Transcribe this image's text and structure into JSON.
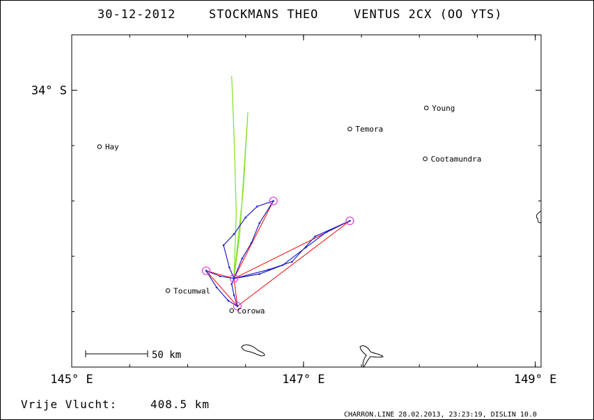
{
  "header": {
    "date": "30-12-2012",
    "pilot": "STOCKMANS THEO",
    "glider": "VENTUS 2CX (OO YTS)"
  },
  "footer": {
    "flight_label": "Vrije Vlucht:",
    "flight_distance": "408.5 km",
    "software": "CHARRON.LINE 28.02.2013, 23:23:19, DISLIN 10.0"
  },
  "chart_data": {
    "type": "map",
    "x_axis": {
      "ticks": [
        145,
        147,
        149
      ],
      "tick_labels": [
        "145° E",
        "147° E",
        "149° E"
      ],
      "range": [
        145.0,
        149.05
      ]
    },
    "y_axis": {
      "ticks": [
        -34
      ],
      "tick_labels": [
        "34° S"
      ],
      "range": [
        -36.5,
        -33.5
      ]
    },
    "scale_bar": {
      "label": "50 km"
    },
    "towns": [
      {
        "name": "Hay",
        "lon": 145.24,
        "lat": -34.51
      },
      {
        "name": "Temora",
        "lon": 147.4,
        "lat": -34.35
      },
      {
        "name": "Young",
        "lon": 148.06,
        "lat": -34.16
      },
      {
        "name": "Cootamundra",
        "lon": 148.05,
        "lat": -34.62
      },
      {
        "name": "Tocumwal",
        "lon": 145.83,
        "lat": -35.81
      },
      {
        "name": "Corowa",
        "lon": 146.38,
        "lat": -35.99
      }
    ],
    "turnpoints": [
      {
        "lon": 146.74,
        "lat": -35.0
      },
      {
        "lon": 147.4,
        "lat": -35.18
      },
      {
        "lon": 146.16,
        "lat": -35.63
      },
      {
        "lon": 146.4,
        "lat": -35.7
      },
      {
        "lon": 146.43,
        "lat": -35.95
      }
    ],
    "task_lines": [
      [
        [
          146.43,
          -35.95
        ],
        [
          146.4,
          -35.7
        ],
        [
          146.74,
          -35.0
        ],
        [
          146.4,
          -35.7
        ]
      ],
      [
        [
          146.4,
          -35.7
        ],
        [
          147.4,
          -35.18
        ],
        [
          146.43,
          -35.95
        ]
      ],
      [
        [
          146.4,
          -35.7
        ],
        [
          146.16,
          -35.63
        ],
        [
          146.43,
          -35.95
        ]
      ]
    ],
    "track": [
      [
        146.43,
        -35.95
      ],
      [
        146.4,
        -35.85
      ],
      [
        146.38,
        -35.75
      ],
      [
        146.4,
        -35.7
      ],
      [
        146.36,
        -35.6
      ],
      [
        146.31,
        -35.4
      ],
      [
        146.4,
        -35.3
      ],
      [
        146.5,
        -35.15
      ],
      [
        146.6,
        -35.05
      ],
      [
        146.74,
        -35.0
      ],
      [
        146.62,
        -35.2
      ],
      [
        146.55,
        -35.38
      ],
      [
        146.47,
        -35.52
      ],
      [
        146.4,
        -35.7
      ],
      [
        146.62,
        -35.66
      ],
      [
        146.82,
        -35.58
      ],
      [
        147.02,
        -35.42
      ],
      [
        147.2,
        -35.28
      ],
      [
        147.4,
        -35.18
      ],
      [
        147.1,
        -35.32
      ],
      [
        146.9,
        -35.55
      ],
      [
        146.7,
        -35.62
      ],
      [
        146.4,
        -35.7
      ],
      [
        146.28,
        -35.68
      ],
      [
        146.16,
        -35.63
      ],
      [
        146.25,
        -35.78
      ],
      [
        146.35,
        -35.9
      ],
      [
        146.43,
        -35.95
      ]
    ],
    "green_track": [
      [
        146.38,
        -33.87
      ],
      [
        146.4,
        -34.4
      ],
      [
        146.42,
        -35.1
      ],
      [
        146.4,
        -35.7
      ],
      [
        146.48,
        -34.9
      ],
      [
        146.52,
        -34.2
      ],
      [
        146.45,
        -35.3
      ],
      [
        146.4,
        -35.7
      ]
    ],
    "colors": {
      "track": "#2020c0",
      "task": "#ff0000",
      "turnpoint": "#e040e0",
      "green": "#80e020"
    }
  }
}
